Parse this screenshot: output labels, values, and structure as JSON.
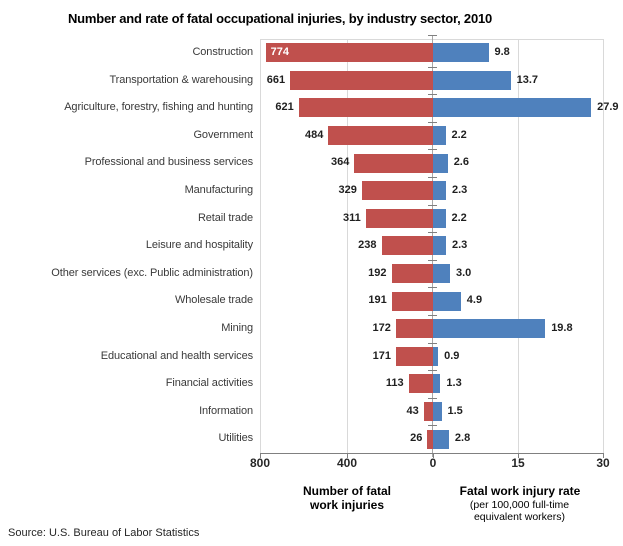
{
  "title": "Number and rate of fatal occupational injuries, by industry sector, 2010",
  "source": "Source: U.S. Bureau of Labor Statistics",
  "colors": {
    "injuries_bar": "#C0504D",
    "rate_bar": "#4F81BD",
    "gridline": "#D9D9D9",
    "axis_line": "#808080"
  },
  "chart_data": {
    "type": "bar",
    "variant": "diverging-horizontal",
    "title": "Number and rate of fatal occupational injuries, by industry sector, 2010",
    "categories": [
      "Construction",
      "Transportation & warehousing",
      "Agriculture, forestry, fishing and hunting",
      "Government",
      "Professional and business services",
      "Manufacturing",
      "Retail trade",
      "Leisure and hospitality",
      "Other services (exc. Public administration)",
      "Wholesale trade",
      "Mining",
      "Educational and health services",
      "Financial activities",
      "Information",
      "Utilities"
    ],
    "series": [
      {
        "name": "Number of fatal work injuries",
        "side": "left",
        "color": "#C0504D",
        "axis_range": [
          0,
          800
        ],
        "values": [
          774,
          661,
          621,
          484,
          364,
          329,
          311,
          238,
          192,
          191,
          172,
          171,
          113,
          43,
          26
        ],
        "labels": [
          "774",
          "661",
          "621",
          "484",
          "364",
          "329",
          "311",
          "238",
          "192",
          "191",
          "172",
          "171",
          "113",
          "43",
          "26"
        ]
      },
      {
        "name": "Fatal work injury rate",
        "side": "right",
        "color": "#4F81BD",
        "axis_range": [
          0,
          30
        ],
        "values": [
          9.8,
          13.7,
          27.9,
          2.2,
          2.6,
          2.3,
          2.2,
          2.3,
          3.0,
          4.9,
          19.8,
          0.9,
          1.3,
          1.5,
          2.8
        ],
        "labels": [
          "9.8",
          "13.7",
          "27.9",
          "2.2",
          "2.6",
          "2.3",
          "2.2",
          "2.3",
          "3.0",
          "4.9",
          "19.8",
          "0.9",
          "1.3",
          "1.5",
          "2.8"
        ]
      }
    ],
    "x_tick_labels": [
      "800",
      "400",
      "0",
      "15",
      "30"
    ],
    "left_axis_title": "Number of fatal work injuries",
    "right_axis_title": "Fatal work injury rate",
    "right_axis_subtitle": "(per 100,000 full-time equivalent workers)",
    "grid": true,
    "legend": "none"
  }
}
